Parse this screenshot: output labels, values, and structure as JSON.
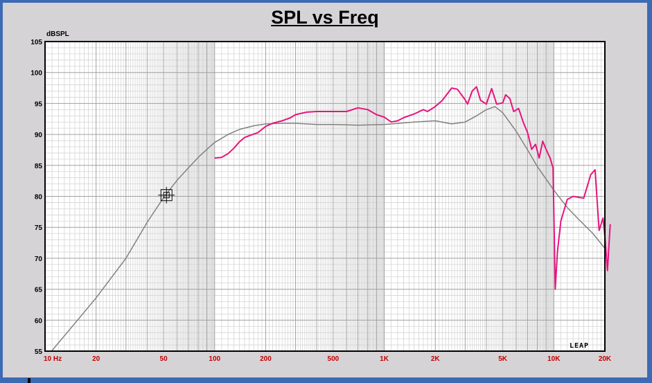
{
  "chart_data": {
    "type": "line",
    "title": "SPL vs Freq",
    "ylabel": "dBSPL",
    "xscale": "log",
    "xlim": [
      10,
      20000
    ],
    "ylim": [
      55,
      105
    ],
    "x_ticks": [
      {
        "value": 10,
        "label": "10 Hz"
      },
      {
        "value": 20,
        "label": "20"
      },
      {
        "value": 50,
        "label": "50"
      },
      {
        "value": 100,
        "label": "100"
      },
      {
        "value": 200,
        "label": "200"
      },
      {
        "value": 500,
        "label": "500"
      },
      {
        "value": 1000,
        "label": "1K"
      },
      {
        "value": 2000,
        "label": "2K"
      },
      {
        "value": 5000,
        "label": "5K"
      },
      {
        "value": 10000,
        "label": "10K"
      },
      {
        "value": 20000,
        "label": "20K"
      }
    ],
    "y_ticks": [
      55,
      60,
      65,
      70,
      75,
      80,
      85,
      90,
      95,
      100,
      105
    ],
    "grid": true,
    "series": [
      {
        "color": "#808080",
        "points": [
          [
            11,
            55.1
          ],
          [
            15,
            59.5
          ],
          [
            20,
            63.6
          ],
          [
            30,
            70
          ],
          [
            40,
            75.8
          ],
          [
            50,
            79.8
          ],
          [
            60,
            82.6
          ],
          [
            70,
            84.6
          ],
          [
            80,
            86.3
          ],
          [
            90,
            87.6
          ],
          [
            100,
            88.7
          ],
          [
            120,
            90
          ],
          [
            140,
            90.8
          ],
          [
            170,
            91.4
          ],
          [
            200,
            91.7
          ],
          [
            250,
            91.8
          ],
          [
            300,
            91.8
          ],
          [
            400,
            91.6
          ],
          [
            500,
            91.6
          ],
          [
            700,
            91.5
          ],
          [
            1000,
            91.6
          ],
          [
            1500,
            92
          ],
          [
            2000,
            92.2
          ],
          [
            2500,
            91.7
          ],
          [
            3000,
            92
          ],
          [
            3500,
            93
          ],
          [
            4000,
            94
          ],
          [
            4500,
            94.5
          ],
          [
            5000,
            93.5
          ],
          [
            6000,
            90.5
          ],
          [
            7000,
            87.5
          ],
          [
            8000,
            84.8
          ],
          [
            10000,
            81
          ],
          [
            12000,
            78.2
          ],
          [
            14000,
            76.3
          ],
          [
            17000,
            74
          ],
          [
            20000,
            71.6
          ]
        ]
      },
      {
        "color": "#e6147d",
        "points": [
          [
            100,
            86.2
          ],
          [
            110,
            86.3
          ],
          [
            120,
            86.9
          ],
          [
            130,
            87.8
          ],
          [
            140,
            88.8
          ],
          [
            150,
            89.5
          ],
          [
            160,
            89.8
          ],
          [
            180,
            90.3
          ],
          [
            200,
            91.3
          ],
          [
            220,
            91.8
          ],
          [
            250,
            92.2
          ],
          [
            280,
            92.7
          ],
          [
            300,
            93.2
          ],
          [
            350,
            93.6
          ],
          [
            400,
            93.7
          ],
          [
            500,
            93.7
          ],
          [
            600,
            93.7
          ],
          [
            700,
            94.3
          ],
          [
            800,
            94
          ],
          [
            900,
            93.2
          ],
          [
            1000,
            92.8
          ],
          [
            1100,
            92
          ],
          [
            1200,
            92.2
          ],
          [
            1300,
            92.7
          ],
          [
            1500,
            93.3
          ],
          [
            1700,
            94
          ],
          [
            1800,
            93.7
          ],
          [
            2000,
            94.5
          ],
          [
            2200,
            95.5
          ],
          [
            2500,
            97.5
          ],
          [
            2700,
            97.3
          ],
          [
            3000,
            95.6
          ],
          [
            3100,
            94.9
          ],
          [
            3300,
            97
          ],
          [
            3500,
            97.7
          ],
          [
            3700,
            95.5
          ],
          [
            4000,
            94.9
          ],
          [
            4300,
            97.4
          ],
          [
            4600,
            94.9
          ],
          [
            5000,
            95.1
          ],
          [
            5200,
            96.4
          ],
          [
            5500,
            95.8
          ],
          [
            5800,
            93.7
          ],
          [
            6200,
            94.2
          ],
          [
            6600,
            92
          ],
          [
            7000,
            90.3
          ],
          [
            7400,
            87.6
          ],
          [
            7800,
            88.4
          ],
          [
            8200,
            86.2
          ],
          [
            8600,
            88.9
          ],
          [
            9000,
            87.6
          ],
          [
            9500,
            86.2
          ],
          [
            9900,
            84.6
          ],
          [
            10200,
            65
          ],
          [
            10500,
            71
          ],
          [
            11000,
            76
          ],
          [
            12000,
            79.5
          ],
          [
            13000,
            80
          ],
          [
            15000,
            79.7
          ],
          [
            16500,
            83.5
          ],
          [
            17500,
            84.3
          ],
          [
            18500,
            74.5
          ],
          [
            19500,
            76.5
          ],
          [
            20000,
            73.5
          ],
          [
            20700,
            68
          ],
          [
            21500,
            75.5
          ]
        ]
      }
    ],
    "marker": {
      "x": 52,
      "y": 80.2
    }
  },
  "logo_text": "LEAP"
}
